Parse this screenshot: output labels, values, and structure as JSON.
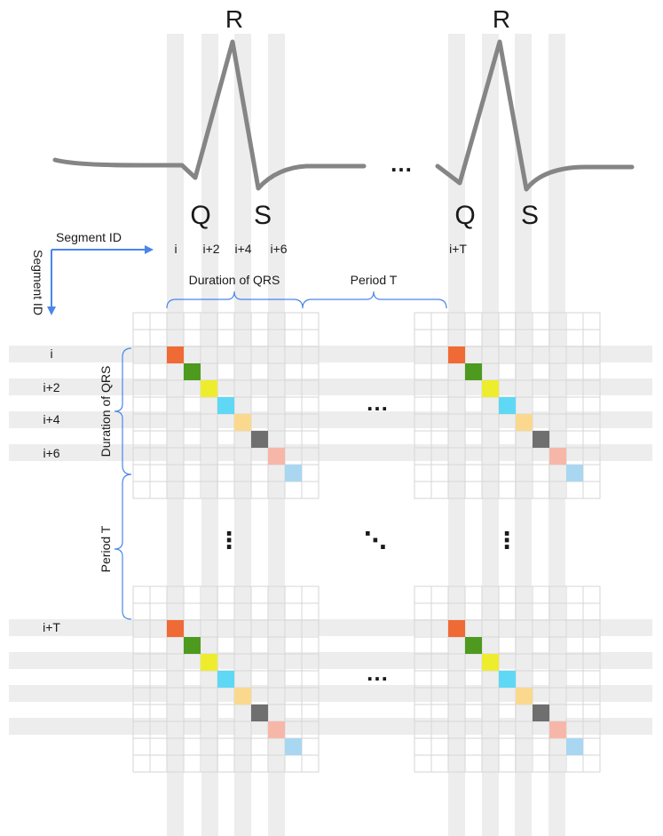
{
  "waveform": {
    "peak_left": "R",
    "peak_right": "R",
    "q_left": "Q",
    "s_left": "S",
    "q_right": "Q",
    "s_right": "S",
    "ellipsis": "…"
  },
  "axes": {
    "horizontal_label": "Segment ID",
    "vertical_label": "Segment ID"
  },
  "column_labels": [
    "i",
    "i+2",
    "i+4",
    "i+6",
    "i+T"
  ],
  "row_labels": [
    "i",
    "i+2",
    "i+4",
    "i+6",
    "i+T"
  ],
  "braces": {
    "top_qrs": "Duration of QRS",
    "top_period": "Period T",
    "side_qrs": "Duration of QRS",
    "side_period": "Period T"
  },
  "ellipsis": {
    "horizontal": "…",
    "vertical": "⋮",
    "diagonal": "⋱"
  },
  "diagonal_colors": [
    "#f06a35",
    "#4d9a1e",
    "#eded2e",
    "#5fd8f5",
    "#fad98f",
    "#6f6f6f",
    "#f7b7a8",
    "#a9d7f2"
  ],
  "colors": {
    "waveform": "#858585",
    "band": "#ededed",
    "grid_line": "#d6d6d6",
    "accent_blue": "#4a86e8"
  }
}
